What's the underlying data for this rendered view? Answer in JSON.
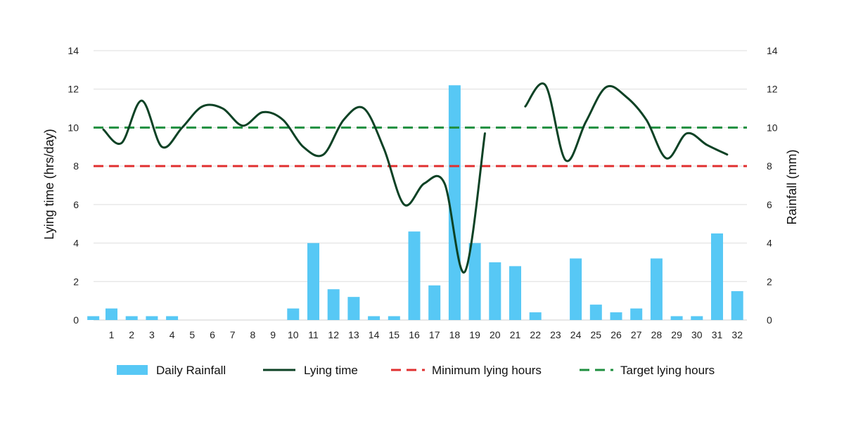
{
  "chart_data": {
    "type": "bar+line",
    "x": [
      1,
      2,
      3,
      4,
      5,
      6,
      7,
      8,
      9,
      10,
      11,
      12,
      13,
      14,
      15,
      16,
      17,
      18,
      19,
      20,
      21,
      22,
      23,
      24,
      25,
      26,
      27,
      28,
      29,
      30,
      31,
      32
    ],
    "xlabel": "",
    "y_left": {
      "label": "Lying time (hrs/day)",
      "lim": [
        0,
        14
      ],
      "ticks": [
        0,
        2,
        4,
        6,
        8,
        10,
        12,
        14
      ]
    },
    "y_right": {
      "label": "Rainfall (mm)",
      "lim": [
        0,
        14
      ],
      "ticks": [
        0,
        2,
        4,
        6,
        8,
        10,
        12,
        14
      ]
    },
    "grid": true,
    "series": [
      {
        "name": "Daily Rainfall",
        "type": "bar",
        "axis": "right",
        "color": "#57c8f5",
        "x": [
          0.1,
          1,
          2,
          3,
          4,
          10,
          11,
          12,
          13,
          14,
          15,
          16,
          17,
          18,
          19,
          20,
          21,
          22,
          24,
          25,
          26,
          27,
          28,
          29,
          30,
          31,
          32
        ],
        "values": [
          0.2,
          0.6,
          0.2,
          0.2,
          0.2,
          0.6,
          4.0,
          1.6,
          1.2,
          0.2,
          0.2,
          4.6,
          1.8,
          12.2,
          4.0,
          3.0,
          2.8,
          0.4,
          3.2,
          0.8,
          0.4,
          0.6,
          3.2,
          0.2,
          0.2,
          4.5,
          1.5
        ]
      },
      {
        "name": "Lying time",
        "type": "line",
        "axis": "left",
        "color": "#0d4225",
        "segments": [
          {
            "x": [
              0.6,
              1.5,
              2.5,
              3.5,
              4.5,
              5.5,
              6.5,
              7.5,
              8.5,
              9.5,
              10.5,
              11.5,
              12.5,
              13.5,
              14.5,
              15.5,
              16.5,
              17.5,
              18.5,
              19.5
            ],
            "y": [
              9.9,
              9.2,
              11.4,
              9.0,
              10.0,
              11.1,
              11.0,
              10.1,
              10.8,
              10.4,
              9.0,
              8.6,
              10.4,
              11.0,
              8.9,
              6.0,
              7.1,
              7.1,
              2.5,
              9.7
            ]
          },
          {
            "x": [
              21.5,
              22.5,
              23.5,
              24.5,
              25.5,
              26.5,
              27.5,
              28.5,
              29.5,
              30.5,
              31.5
            ],
            "y": [
              11.1,
              12.2,
              8.3,
              10.3,
              12.1,
              11.6,
              10.4,
              8.4,
              9.7,
              9.1,
              8.6
            ]
          }
        ]
      },
      {
        "name": "Minimum lying hours",
        "type": "hline",
        "axis": "left",
        "color": "#e03030",
        "value": 8
      },
      {
        "name": "Target lying hours",
        "type": "hline",
        "axis": "left",
        "color": "#1f8f3f",
        "value": 10
      }
    ],
    "legend_position": "bottom"
  }
}
